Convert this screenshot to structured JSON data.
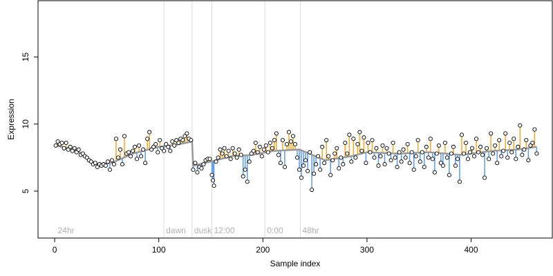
{
  "chart_data": {
    "type": "scatter",
    "title": "",
    "xlabel": "Sample index",
    "ylabel": "Expression",
    "xlim": [
      -16,
      478
    ],
    "ylim": [
      1.5,
      19.2
    ],
    "x_ticks": [
      0,
      100,
      200,
      300,
      400
    ],
    "y_ticks": [
      5,
      10,
      15
    ],
    "grid": false,
    "baseline_color": "#999999",
    "above_color": "#f5a623",
    "below_color": "#5a9be8",
    "point_fill": "#ffffff",
    "point_stroke": "#000000",
    "vertical_markers": [
      {
        "x": 105,
        "label": "dawn"
      },
      {
        "x": 132,
        "label": "dusk"
      },
      {
        "x": 151,
        "label": "12:00"
      },
      {
        "x": 202,
        "label": "0:00"
      },
      {
        "x": 236,
        "label": "48hr"
      }
    ],
    "start_label": {
      "x": 3,
      "label": "24hr"
    },
    "series": [
      {
        "points": [
          [
            1,
            8.4
          ],
          [
            3,
            8.7
          ],
          [
            5,
            8.5
          ],
          [
            7,
            8.6
          ],
          [
            9,
            8.2
          ],
          [
            11,
            8.6
          ],
          [
            13,
            8.1
          ],
          [
            15,
            8.3
          ],
          [
            17,
            8.0
          ],
          [
            19,
            8.2
          ],
          [
            21,
            7.9
          ],
          [
            23,
            8.1
          ],
          [
            25,
            7.7
          ],
          [
            27,
            7.8
          ],
          [
            29,
            7.6
          ],
          [
            31,
            7.5
          ],
          [
            33,
            7.3
          ],
          [
            35,
            7.2
          ],
          [
            37,
            7.0
          ],
          [
            39,
            7.1
          ],
          [
            41,
            6.8
          ],
          [
            43,
            7.0
          ],
          [
            45,
            6.9
          ],
          [
            47,
            7.0
          ],
          [
            49,
            6.9
          ],
          [
            51,
            7.2
          ],
          [
            53,
            6.6
          ],
          [
            55,
            7.3
          ],
          [
            57,
            7.0
          ],
          [
            59,
            8.9
          ],
          [
            61,
            7.5
          ],
          [
            63,
            8.1
          ],
          [
            65,
            7.0
          ],
          [
            67,
            9.1
          ],
          [
            69,
            7.8
          ],
          [
            71,
            7.9
          ],
          [
            73,
            7.6
          ],
          [
            75,
            8.0
          ],
          [
            77,
            8.3
          ],
          [
            79,
            7.4
          ],
          [
            81,
            8.4
          ],
          [
            83,
            7.6
          ],
          [
            85,
            8.1
          ],
          [
            87,
            7.1
          ],
          [
            89,
            8.9
          ],
          [
            91,
            9.4
          ],
          [
            93,
            8.1
          ],
          [
            95,
            8.3
          ],
          [
            97,
            8.5
          ],
          [
            99,
            7.9
          ],
          [
            101,
            8.8
          ],
          [
            103,
            8.2
          ],
          [
            105,
            8.0
          ],
          [
            107,
            8.5
          ],
          [
            109,
            8.3
          ],
          [
            111,
            8.0
          ],
          [
            113,
            8.7
          ],
          [
            115,
            8.4
          ],
          [
            117,
            8.8
          ],
          [
            119,
            8.6
          ],
          [
            121,
            8.9
          ],
          [
            123,
            8.8
          ],
          [
            125,
            9.1
          ],
          [
            127,
            9.3
          ],
          [
            129,
            8.9
          ],
          [
            131,
            8.8
          ],
          [
            133,
            6.6
          ],
          [
            135,
            7.1
          ],
          [
            137,
            6.4
          ],
          [
            139,
            6.8
          ],
          [
            141,
            6.7
          ],
          [
            143,
            7.0
          ],
          [
            145,
            7.3
          ],
          [
            147,
            7.4
          ],
          [
            149,
            7.4
          ],
          [
            151,
            6.2
          ],
          [
            152,
            5.8
          ],
          [
            153,
            5.4
          ],
          [
            155,
            7.2
          ],
          [
            157,
            7.5
          ],
          [
            159,
            8.1
          ],
          [
            161,
            7.8
          ],
          [
            163,
            8.2
          ],
          [
            165,
            7.6
          ],
          [
            167,
            8.0
          ],
          [
            169,
            7.4
          ],
          [
            171,
            8.2
          ],
          [
            173,
            7.8
          ],
          [
            175,
            7.5
          ],
          [
            177,
            8.1
          ],
          [
            179,
            7.7
          ],
          [
            181,
            6.1
          ],
          [
            183,
            6.6
          ],
          [
            185,
            5.7
          ],
          [
            187,
            7.2
          ],
          [
            189,
            7.8
          ],
          [
            191,
            8.0
          ],
          [
            193,
            8.6
          ],
          [
            195,
            7.9
          ],
          [
            197,
            8.3
          ],
          [
            199,
            7.6
          ],
          [
            201,
            8.1
          ],
          [
            203,
            8.4
          ],
          [
            205,
            7.9
          ],
          [
            207,
            8.6
          ],
          [
            209,
            8.2
          ],
          [
            211,
            8.8
          ],
          [
            213,
            9.3
          ],
          [
            215,
            7.7
          ],
          [
            217,
            7.1
          ],
          [
            219,
            8.8
          ],
          [
            221,
            6.8
          ],
          [
            223,
            8.5
          ],
          [
            225,
            9.4
          ],
          [
            227,
            8.7
          ],
          [
            229,
            9.1
          ],
          [
            231,
            8.5
          ],
          [
            233,
            7.5
          ],
          [
            235,
            6.6
          ],
          [
            237,
            6.0
          ],
          [
            239,
            6.9
          ],
          [
            241,
            7.3
          ],
          [
            243,
            6.5
          ],
          [
            245,
            7.9
          ],
          [
            247,
            5.1
          ],
          [
            249,
            6.3
          ],
          [
            251,
            7.0
          ],
          [
            253,
            7.6
          ],
          [
            255,
            6.6
          ],
          [
            257,
            8.3
          ],
          [
            259,
            7.1
          ],
          [
            261,
            8.8
          ],
          [
            263,
            7.6
          ],
          [
            265,
            6.2
          ],
          [
            267,
            7.3
          ],
          [
            269,
            7.8
          ],
          [
            271,
            8.2
          ],
          [
            273,
            6.7
          ],
          [
            275,
            7.5
          ],
          [
            277,
            7.0
          ],
          [
            279,
            8.6
          ],
          [
            281,
            7.8
          ],
          [
            283,
            9.2
          ],
          [
            285,
            7.2
          ],
          [
            287,
            8.9
          ],
          [
            289,
            7.5
          ],
          [
            291,
            8.5
          ],
          [
            293,
            9.4
          ],
          [
            295,
            8.0
          ],
          [
            297,
            9.0
          ],
          [
            299,
            7.1
          ],
          [
            301,
            8.6
          ],
          [
            303,
            7.9
          ],
          [
            305,
            8.8
          ],
          [
            307,
            7.5
          ],
          [
            309,
            8.2
          ],
          [
            311,
            6.9
          ],
          [
            313,
            7.6
          ],
          [
            315,
            8.4
          ],
          [
            317,
            7.0
          ],
          [
            319,
            8.2
          ],
          [
            321,
            7.8
          ],
          [
            323,
            7.3
          ],
          [
            325,
            8.6
          ],
          [
            327,
            7.5
          ],
          [
            329,
            6.8
          ],
          [
            331,
            7.9
          ],
          [
            333,
            7.2
          ],
          [
            335,
            8.1
          ],
          [
            337,
            7.5
          ],
          [
            339,
            8.5
          ],
          [
            341,
            7.1
          ],
          [
            343,
            7.9
          ],
          [
            345,
            6.6
          ],
          [
            347,
            7.6
          ],
          [
            349,
            8.8
          ],
          [
            351,
            7.2
          ],
          [
            353,
            7.9
          ],
          [
            355,
            6.8
          ],
          [
            357,
            8.3
          ],
          [
            359,
            7.5
          ],
          [
            361,
            8.9
          ],
          [
            363,
            7.4
          ],
          [
            365,
            6.4
          ],
          [
            367,
            7.8
          ],
          [
            369,
            8.4
          ],
          [
            371,
            7.1
          ],
          [
            373,
            6.9
          ],
          [
            375,
            8.6
          ],
          [
            377,
            7.5
          ],
          [
            379,
            6.2
          ],
          [
            381,
            7.8
          ],
          [
            383,
            8.3
          ],
          [
            385,
            6.9
          ],
          [
            387,
            7.4
          ],
          [
            389,
            5.7
          ],
          [
            391,
            9.2
          ],
          [
            393,
            7.8
          ],
          [
            395,
            8.6
          ],
          [
            397,
            7.4
          ],
          [
            399,
            7.9
          ],
          [
            401,
            8.2
          ],
          [
            403,
            7.6
          ],
          [
            405,
            8.9
          ],
          [
            407,
            7.9
          ],
          [
            409,
            8.3
          ],
          [
            411,
            7.7
          ],
          [
            413,
            6.0
          ],
          [
            415,
            8.2
          ],
          [
            417,
            7.4
          ],
          [
            419,
            9.3
          ],
          [
            421,
            7.8
          ],
          [
            423,
            8.4
          ],
          [
            425,
            7.1
          ],
          [
            427,
            8.8
          ],
          [
            429,
            7.6
          ],
          [
            431,
            8.0
          ],
          [
            433,
            9.3
          ],
          [
            435,
            7.5
          ],
          [
            437,
            8.6
          ],
          [
            439,
            7.9
          ],
          [
            441,
            8.9
          ],
          [
            443,
            7.4
          ],
          [
            445,
            8.3
          ],
          [
            447,
            9.9
          ],
          [
            449,
            7.7
          ],
          [
            451,
            8.1
          ],
          [
            453,
            8.8
          ],
          [
            455,
            7.3
          ],
          [
            457,
            8.4
          ],
          [
            459,
            8.6
          ],
          [
            461,
            9.6
          ],
          [
            463,
            7.8
          ]
        ],
        "baseline": [
          [
            0,
            8.4
          ],
          [
            20,
            8.1
          ],
          [
            40,
            7.0
          ],
          [
            55,
            7.1
          ],
          [
            75,
            7.8
          ],
          [
            100,
            8.3
          ],
          [
            120,
            8.5
          ],
          [
            132,
            8.7
          ],
          [
            133,
            6.9
          ],
          [
            150,
            7.2
          ],
          [
            170,
            7.6
          ],
          [
            190,
            7.7
          ],
          [
            210,
            8.0
          ],
          [
            235,
            8.1
          ],
          [
            260,
            7.3
          ],
          [
            285,
            7.6
          ],
          [
            300,
            7.9
          ],
          [
            330,
            7.8
          ],
          [
            360,
            7.9
          ],
          [
            390,
            7.7
          ],
          [
            420,
            8.0
          ],
          [
            445,
            8.1
          ],
          [
            463,
            8.3
          ]
        ]
      }
    ]
  }
}
